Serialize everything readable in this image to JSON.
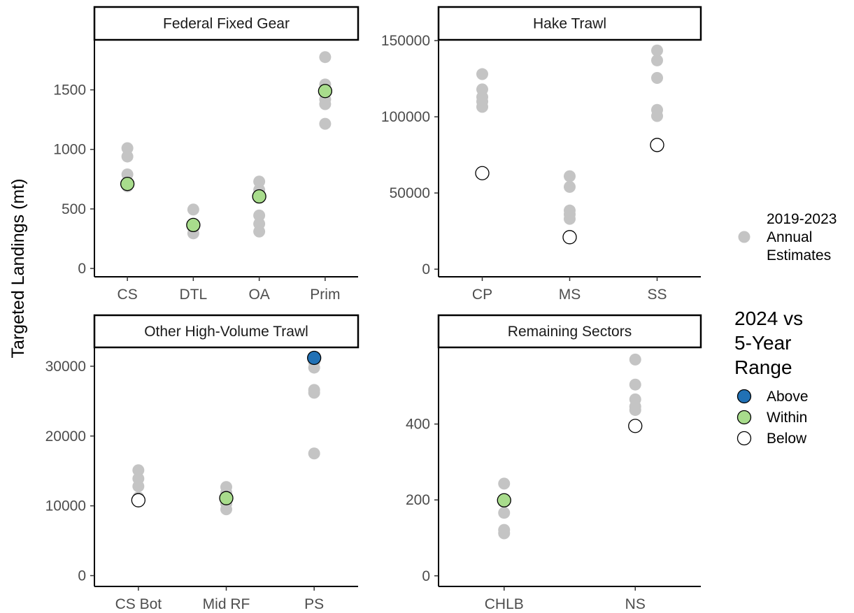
{
  "y_axis_title": "Targeted Landings (mt)",
  "colors": {
    "history": "#c4c4c4",
    "Above": "#2171b5",
    "Within": "#a8dc8c",
    "Below": "#ffffff",
    "outline": "#000000"
  },
  "legend": {
    "history_label": [
      "2019-2023",
      "Annual",
      "Estimates"
    ],
    "title": [
      "2024 vs",
      "5-Year",
      "Range"
    ],
    "items": [
      {
        "label": "Above",
        "status": "Above"
      },
      {
        "label": "Within",
        "status": "Within"
      },
      {
        "label": "Below",
        "status": "Below"
      }
    ]
  },
  "chart_data": [
    {
      "type": "scatter",
      "title": "Federal Fixed Gear",
      "categories": [
        "CS",
        "DTL",
        "OA",
        "Prim"
      ],
      "ylim": [
        -70,
        1920
      ],
      "yticks": [
        0,
        500,
        1000,
        1500
      ],
      "series": [
        {
          "name": "2019-2023 Annual Estimates",
          "points": [
            {
              "x": "CS",
              "y": 690
            },
            {
              "x": "CS",
              "y": 790
            },
            {
              "x": "CS",
              "y": 940
            },
            {
              "x": "CS",
              "y": 1010
            },
            {
              "x": "DTL",
              "y": 295
            },
            {
              "x": "DTL",
              "y": 340
            },
            {
              "x": "DTL",
              "y": 375
            },
            {
              "x": "DTL",
              "y": 495
            },
            {
              "x": "OA",
              "y": 310
            },
            {
              "x": "OA",
              "y": 375
            },
            {
              "x": "OA",
              "y": 445
            },
            {
              "x": "OA",
              "y": 660
            },
            {
              "x": "OA",
              "y": 730
            },
            {
              "x": "Prim",
              "y": 1215
            },
            {
              "x": "Prim",
              "y": 1380
            },
            {
              "x": "Prim",
              "y": 1420
            },
            {
              "x": "Prim",
              "y": 1545
            },
            {
              "x": "Prim",
              "y": 1775
            }
          ]
        },
        {
          "name": "2024",
          "points": [
            {
              "x": "CS",
              "y": 710,
              "status": "Within"
            },
            {
              "x": "DTL",
              "y": 365,
              "status": "Within"
            },
            {
              "x": "OA",
              "y": 605,
              "status": "Within"
            },
            {
              "x": "Prim",
              "y": 1490,
              "status": "Within"
            }
          ]
        }
      ]
    },
    {
      "type": "scatter",
      "title": "Hake Trawl",
      "categories": [
        "CP",
        "MS",
        "SS"
      ],
      "ylim": [
        -5000,
        150500
      ],
      "yticks": [
        0,
        50000,
        100000,
        150000
      ],
      "series": [
        {
          "name": "2019-2023 Annual Estimates",
          "points": [
            {
              "x": "CP",
              "y": 106500
            },
            {
              "x": "CP",
              "y": 110000
            },
            {
              "x": "CP",
              "y": 113000
            },
            {
              "x": "CP",
              "y": 118000
            },
            {
              "x": "CP",
              "y": 128000
            },
            {
              "x": "MS",
              "y": 33000
            },
            {
              "x": "MS",
              "y": 36000
            },
            {
              "x": "MS",
              "y": 38500
            },
            {
              "x": "MS",
              "y": 54000
            },
            {
              "x": "MS",
              "y": 61000
            },
            {
              "x": "SS",
              "y": 100500
            },
            {
              "x": "SS",
              "y": 104500
            },
            {
              "x": "SS",
              "y": 125500
            },
            {
              "x": "SS",
              "y": 137000
            },
            {
              "x": "SS",
              "y": 143500
            }
          ]
        },
        {
          "name": "2024",
          "points": [
            {
              "x": "CP",
              "y": 63000,
              "status": "Below"
            },
            {
              "x": "MS",
              "y": 21000,
              "status": "Below"
            },
            {
              "x": "SS",
              "y": 81500,
              "status": "Below"
            }
          ]
        }
      ]
    },
    {
      "type": "scatter",
      "title": "Other High-Volume Trawl",
      "categories": [
        "CS Bot",
        "Mid RF",
        "PS"
      ],
      "ylim": [
        -1550,
        32700
      ],
      "yticks": [
        0,
        10000,
        20000,
        30000
      ],
      "series": [
        {
          "name": "2019-2023 Annual Estimates",
          "points": [
            {
              "x": "CS Bot",
              "y": 11200
            },
            {
              "x": "CS Bot",
              "y": 12800
            },
            {
              "x": "CS Bot",
              "y": 13900
            },
            {
              "x": "CS Bot",
              "y": 15100
            },
            {
              "x": "Mid RF",
              "y": 9500
            },
            {
              "x": "Mid RF",
              "y": 10300
            },
            {
              "x": "Mid RF",
              "y": 11900
            },
            {
              "x": "Mid RF",
              "y": 12700
            },
            {
              "x": "PS",
              "y": 17500
            },
            {
              "x": "PS",
              "y": 26200
            },
            {
              "x": "PS",
              "y": 26600
            },
            {
              "x": "PS",
              "y": 29800
            },
            {
              "x": "PS",
              "y": 30600
            }
          ]
        },
        {
          "name": "2024",
          "points": [
            {
              "x": "CS Bot",
              "y": 10800,
              "status": "Below"
            },
            {
              "x": "Mid RF",
              "y": 11100,
              "status": "Within"
            },
            {
              "x": "PS",
              "y": 31200,
              "status": "Above"
            }
          ]
        }
      ]
    },
    {
      "type": "scatter",
      "title": "Remaining Sectors",
      "categories": [
        "CHLB",
        "NS"
      ],
      "ylim": [
        -28,
        602
      ],
      "yticks": [
        0,
        200,
        400
      ],
      "series": [
        {
          "name": "2019-2023 Annual Estimates",
          "points": [
            {
              "x": "CHLB",
              "y": 112
            },
            {
              "x": "CHLB",
              "y": 121
            },
            {
              "x": "CHLB",
              "y": 166
            },
            {
              "x": "CHLB",
              "y": 243
            },
            {
              "x": "NS",
              "y": 437
            },
            {
              "x": "NS",
              "y": 446
            },
            {
              "x": "NS",
              "y": 465
            },
            {
              "x": "NS",
              "y": 504
            },
            {
              "x": "NS",
              "y": 570
            }
          ]
        },
        {
          "name": "2024",
          "points": [
            {
              "x": "CHLB",
              "y": 199,
              "status": "Within"
            },
            {
              "x": "NS",
              "y": 395,
              "status": "Below"
            }
          ]
        }
      ]
    }
  ]
}
